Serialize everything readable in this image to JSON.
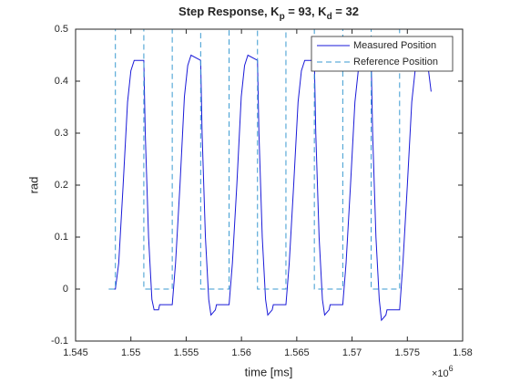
{
  "chart_data": {
    "type": "line",
    "title": [
      "Step Response, K",
      "p",
      " = 93, K",
      "d",
      " = 32"
    ],
    "x_label": "time [ms]",
    "y_label": "rad",
    "x_exponent": [
      "×10",
      "6"
    ],
    "xlim": [
      1545000,
      1580000
    ],
    "xticks": [
      {
        "value": 1545000,
        "label": "1.545"
      },
      {
        "value": 1550000,
        "label": "1.55"
      },
      {
        "value": 1555000,
        "label": "1.555"
      },
      {
        "value": 1560000,
        "label": "1.56"
      },
      {
        "value": 1565000,
        "label": "1.565"
      },
      {
        "value": 1570000,
        "label": "1.57"
      },
      {
        "value": 1575000,
        "label": "1.575"
      },
      {
        "value": 1580000,
        "label": "1.58"
      }
    ],
    "ylim": [
      -0.1,
      0.5
    ],
    "yticks": [
      -0.1,
      0,
      0.1,
      0.2,
      0.3,
      0.4,
      0.5
    ],
    "legend": "northeast",
    "series": [
      {
        "name": "Measured Position",
        "color": "#1a1ad8",
        "dash": false,
        "x": [
          1548000,
          1548600,
          1548900,
          1549300,
          1549700,
          1550000,
          1550300,
          1551170,
          1551300,
          1551600,
          1551900,
          1552100,
          1552500,
          1552600,
          1553740,
          1554040,
          1554440,
          1554840,
          1555140,
          1555440,
          1556310,
          1556440,
          1556740,
          1557040,
          1557240,
          1557640,
          1557740,
          1558880,
          1559180,
          1559580,
          1559980,
          1560280,
          1560580,
          1561450,
          1561580,
          1561880,
          1562180,
          1562380,
          1562780,
          1562880,
          1564020,
          1564320,
          1564720,
          1565120,
          1565420,
          1565720,
          1566590,
          1566720,
          1567020,
          1567320,
          1567520,
          1567920,
          1568020,
          1569160,
          1569460,
          1569860,
          1570260,
          1570560,
          1570860,
          1571730,
          1571860,
          1572160,
          1572460,
          1572660,
          1573060,
          1573160,
          1574300,
          1574600,
          1575000,
          1575400,
          1575700,
          1576000,
          1576800,
          1577150
        ],
        "values": [
          0,
          0,
          0.05,
          0.2,
          0.36,
          0.42,
          0.44,
          0.44,
          0.3,
          0.1,
          -0.02,
          -0.04,
          -0.04,
          -0.03,
          -0.03,
          0.05,
          0.2,
          0.37,
          0.43,
          0.45,
          0.44,
          0.3,
          0.1,
          -0.02,
          -0.05,
          -0.04,
          -0.03,
          -0.03,
          0.05,
          0.2,
          0.37,
          0.43,
          0.45,
          0.44,
          0.3,
          0.1,
          -0.02,
          -0.05,
          -0.04,
          -0.03,
          -0.03,
          0.05,
          0.2,
          0.36,
          0.42,
          0.44,
          0.44,
          0.3,
          0.1,
          -0.02,
          -0.05,
          -0.04,
          -0.03,
          -0.03,
          0.05,
          0.2,
          0.36,
          0.42,
          0.44,
          0.44,
          0.3,
          0.1,
          -0.02,
          -0.06,
          -0.05,
          -0.04,
          -0.04,
          0.05,
          0.2,
          0.36,
          0.42,
          0.44,
          0.44,
          0.38
        ]
      },
      {
        "name": "Reference Position",
        "color": "#3a9ad0",
        "dash": true,
        "x": [
          1548000,
          1548600,
          1548600,
          1551170,
          1551170,
          1553740,
          1553740,
          1556310,
          1556310,
          1558880,
          1558880,
          1561450,
          1561450,
          1564020,
          1564020,
          1566590,
          1566590,
          1569160,
          1569160,
          1571730,
          1571730,
          1574300,
          1574300,
          1577100
        ],
        "values": [
          0,
          0,
          0.5,
          0.5,
          0,
          0,
          0.5,
          0.5,
          0,
          0,
          0.5,
          0.5,
          0,
          0,
          0.5,
          0.5,
          0,
          0,
          0.5,
          0.5,
          0,
          0,
          0.5,
          0.5
        ]
      }
    ]
  }
}
